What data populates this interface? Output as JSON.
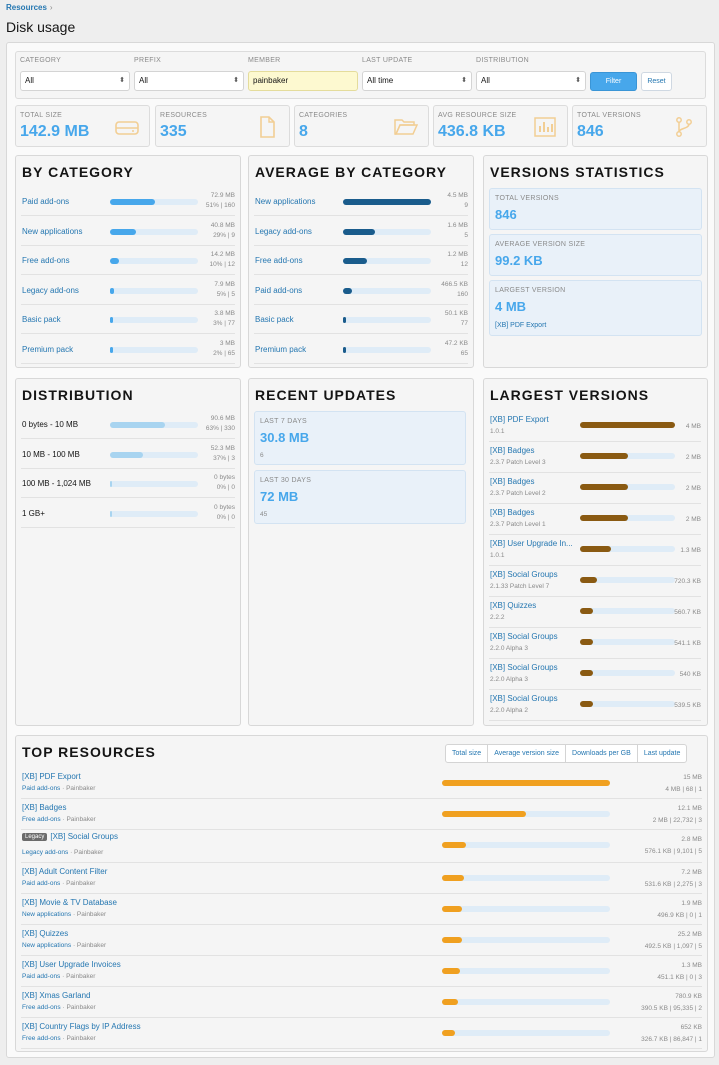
{
  "breadcrumb": {
    "item": "Resources",
    "sep": "›"
  },
  "page_title": "Disk usage",
  "filters": {
    "category": {
      "label": "CATEGORY",
      "value": "All"
    },
    "prefix": {
      "label": "PREFIX",
      "value": "All"
    },
    "member": {
      "label": "MEMBER",
      "value": "painbaker"
    },
    "last_update": {
      "label": "LAST UPDATE",
      "value": "All time"
    },
    "distribution": {
      "label": "DISTRIBUTION",
      "value": "All"
    },
    "filter_button": "Filter",
    "reset_button": "Reset",
    "arrow": "⬍"
  },
  "stats": [
    {
      "label": "TOTAL SIZE",
      "value": "142.9 MB",
      "icon": "hard-drive-icon"
    },
    {
      "label": "RESOURCES",
      "value": "335",
      "icon": "file-icon"
    },
    {
      "label": "CATEGORIES",
      "value": "8",
      "icon": "folder-open-icon"
    },
    {
      "label": "AVG RESOURCE SIZE",
      "value": "436.8 KB",
      "icon": "bar-chart-icon"
    },
    {
      "label": "TOTAL VERSIONS",
      "value": "846",
      "icon": "code-branch-icon"
    }
  ],
  "by_category": {
    "title": "BY CATEGORY",
    "rows": [
      {
        "name": "Paid add-ons",
        "size": "72.9 MB",
        "meta": "51% | 160",
        "fraction": 0.51
      },
      {
        "name": "New applications",
        "size": "40.8 MB",
        "meta": "29% | 9",
        "fraction": 0.29
      },
      {
        "name": "Free add-ons",
        "size": "14.2 MB",
        "meta": "10% | 12",
        "fraction": 0.1
      },
      {
        "name": "Legacy add-ons",
        "size": "7.9 MB",
        "meta": "5% | 5",
        "fraction": 0.05
      },
      {
        "name": "Basic pack",
        "size": "3.8 MB",
        "meta": "3% | 77",
        "fraction": 0.03
      },
      {
        "name": "Premium pack",
        "size": "3 MB",
        "meta": "2% | 65",
        "fraction": 0.02
      }
    ]
  },
  "avg_by_category": {
    "title": "AVERAGE BY CATEGORY",
    "rows": [
      {
        "name": "New applications",
        "size": "4.5 MB",
        "meta": "9",
        "fraction": 1.0
      },
      {
        "name": "Legacy add-ons",
        "size": "1.6 MB",
        "meta": "5",
        "fraction": 0.36
      },
      {
        "name": "Free add-ons",
        "size": "1.2 MB",
        "meta": "12",
        "fraction": 0.27
      },
      {
        "name": "Paid add-ons",
        "size": "466.5 KB",
        "meta": "160",
        "fraction": 0.1
      },
      {
        "name": "Basic pack",
        "size": "50.1 KB",
        "meta": "77",
        "fraction": 0.011
      },
      {
        "name": "Premium pack",
        "size": "47.2 KB",
        "meta": "65",
        "fraction": 0.01
      }
    ]
  },
  "versions_stats": {
    "title": "VERSIONS STATISTICS",
    "total_label": "TOTAL VERSIONS",
    "total_value": "846",
    "avg_label": "AVERAGE VERSION SIZE",
    "avg_value": "99.2 KB",
    "largest_label": "LARGEST VERSION",
    "largest_value": "4 MB",
    "largest_link": "[XB] PDF Export"
  },
  "distribution": {
    "title": "DISTRIBUTION",
    "rows": [
      {
        "name": "0 bytes - 10 MB",
        "size": "90.6 MB",
        "meta": "63% | 330",
        "fraction": 0.63
      },
      {
        "name": "10 MB - 100 MB",
        "size": "52.3 MB",
        "meta": "37% | 3",
        "fraction": 0.37
      },
      {
        "name": "100 MB - 1,024 MB",
        "size": "0 bytes",
        "meta": "0% | 0",
        "fraction": 0.0
      },
      {
        "name": "1 GB+",
        "size": "0 bytes",
        "meta": "0% | 0",
        "fraction": 0.0
      }
    ]
  },
  "recent_updates": {
    "title": "RECENT UPDATES",
    "d7_label": "LAST 7 DAYS",
    "d7_value": "30.8 MB",
    "d7_count": "6",
    "d30_label": "LAST 30 DAYS",
    "d30_value": "72 MB",
    "d30_count": "45"
  },
  "largest_versions": {
    "title": "LARGEST VERSIONS",
    "rows": [
      {
        "name": "[XB] PDF Export",
        "version": "1.0.1",
        "size": "4 MB",
        "fraction": 1.0
      },
      {
        "name": "[XB] Badges",
        "version": "2.3.7 Patch Level 3",
        "size": "2 MB",
        "fraction": 0.5
      },
      {
        "name": "[XB] Badges",
        "version": "2.3.7 Patch Level 2",
        "size": "2 MB",
        "fraction": 0.5
      },
      {
        "name": "[XB] Badges",
        "version": "2.3.7 Patch Level 1",
        "size": "2 MB",
        "fraction": 0.5
      },
      {
        "name": "[XB] User Upgrade In...",
        "version": "1.0.1",
        "size": "1.3 MB",
        "fraction": 0.33
      },
      {
        "name": "[XB] Social Groups",
        "version": "2.1.33 Patch Level 7",
        "size": "720.3 KB",
        "fraction": 0.18
      },
      {
        "name": "[XB] Quizzes",
        "version": "2.2.2",
        "size": "560.7 KB",
        "fraction": 0.14
      },
      {
        "name": "[XB] Social Groups",
        "version": "2.2.0 Alpha 3",
        "size": "541.1 KB",
        "fraction": 0.135
      },
      {
        "name": "[XB] Social Groups",
        "version": "2.2.0 Alpha 3",
        "size": "540 KB",
        "fraction": 0.135
      },
      {
        "name": "[XB] Social Groups",
        "version": "2.2.0 Alpha 2",
        "size": "539.5 KB",
        "fraction": 0.135
      }
    ]
  },
  "top_resources": {
    "title": "TOP RESOURCES",
    "tabs": [
      "Total size",
      "Average version size",
      "Downloads per GB",
      "Last update"
    ],
    "rows": [
      {
        "name": "[XB] PDF Export",
        "category": "Paid add-ons",
        "author": "Painbaker",
        "size": "15 MB",
        "meta": "4 MB | 68 | 1",
        "fraction": 1.0,
        "badge": ""
      },
      {
        "name": "[XB] Badges",
        "category": "Free add-ons",
        "author": "Painbaker",
        "size": "12.1 MB",
        "meta": "2 MB | 22,732 | 3",
        "fraction": 0.5,
        "badge": ""
      },
      {
        "name": "[XB] Social Groups",
        "category": "Legacy add-ons",
        "author": "Painbaker",
        "size": "2.8 MB",
        "meta": "576.1 KB | 9,101 | 5",
        "fraction": 0.14,
        "badge": "Legacy"
      },
      {
        "name": "[XB] Adult Content Filter",
        "category": "Paid add-ons",
        "author": "Painbaker",
        "size": "7.2 MB",
        "meta": "531.6 KB | 2,275 | 3",
        "fraction": 0.13,
        "badge": ""
      },
      {
        "name": "[XB] Movie & TV Database",
        "category": "New applications",
        "author": "Painbaker",
        "size": "1.9 MB",
        "meta": "496.9 KB | 0 | 1",
        "fraction": 0.12,
        "badge": ""
      },
      {
        "name": "[XB] Quizzes",
        "category": "New applications",
        "author": "Painbaker",
        "size": "25.2 MB",
        "meta": "492.5 KB | 1,097 | 5",
        "fraction": 0.12,
        "badge": ""
      },
      {
        "name": "[XB] User Upgrade Invoices",
        "category": "Paid add-ons",
        "author": "Painbaker",
        "size": "1.3 MB",
        "meta": "451.1 KB | 0 | 3",
        "fraction": 0.11,
        "badge": ""
      },
      {
        "name": "[XB] Xmas Garland",
        "category": "Free add-ons",
        "author": "Painbaker",
        "size": "780.9 KB",
        "meta": "390.5 KB | 95,335 | 2",
        "fraction": 0.095,
        "badge": ""
      },
      {
        "name": "[XB] Country Flags by IP Address",
        "category": "Free add-ons",
        "author": "Painbaker",
        "size": "652 KB",
        "meta": "326.7 KB | 86,847 | 1",
        "fraction": 0.08,
        "badge": ""
      }
    ]
  },
  "colors": {
    "accent": "#47a7eb",
    "dark_blue": "#1a5c8c",
    "brown": "#8a5a12",
    "orange": "#f0a020",
    "link": "#2577b1",
    "track": "#dfecf7"
  }
}
